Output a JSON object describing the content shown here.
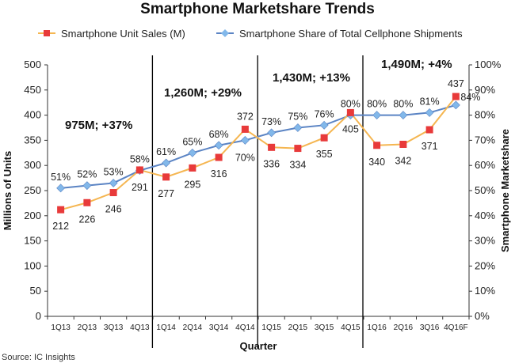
{
  "chart_data": {
    "type": "line",
    "title": "Smartphone Marketshare Trends",
    "xlabel": "Quarter",
    "ylabel": "Millions of Units",
    "y2label": "Smartphone Marketshare",
    "source": "Source: IC Insights",
    "categories": [
      "1Q13",
      "2Q13",
      "3Q13",
      "4Q13",
      "1Q14",
      "2Q14",
      "3Q14",
      "4Q14",
      "1Q15",
      "2Q15",
      "3Q15",
      "4Q15",
      "1Q16",
      "2Q16",
      "3Q16",
      "4Q16F"
    ],
    "ylim": [
      0,
      500
    ],
    "yticks": [
      "0",
      "50",
      "100",
      "150",
      "200",
      "250",
      "300",
      "350",
      "400",
      "450",
      "500"
    ],
    "y2lim": [
      0,
      100
    ],
    "y2ticks": [
      "0%",
      "10%",
      "20%",
      "30%",
      "40%",
      "50%",
      "60%",
      "70%",
      "80%",
      "90%",
      "100%"
    ],
    "grid": false,
    "legend_position": "top",
    "series": [
      {
        "name": "Smartphone Unit Sales (M)",
        "axis": "left",
        "color": "#f5b651",
        "marker_color": "#e83a3a",
        "marker": "square",
        "values": [
          212,
          226,
          246,
          291,
          277,
          295,
          316,
          372,
          336,
          334,
          355,
          405,
          340,
          342,
          371,
          437
        ],
        "labels": [
          "212",
          "226",
          "246",
          "291",
          "277",
          "295",
          "316",
          "372",
          "336",
          "334",
          "355",
          "405",
          "340",
          "342",
          "371",
          "437"
        ]
      },
      {
        "name": "Smartphone Share of Total Cellphone Shipments",
        "axis": "right",
        "color": "#5b84c4",
        "marker_color": "#82b8ea",
        "marker": "diamond",
        "values": [
          51,
          52,
          53,
          58,
          61,
          65,
          68,
          70,
          73,
          75,
          76,
          80,
          80,
          80,
          81,
          84
        ],
        "labels": [
          "51%",
          "52%",
          "53%",
          "58%",
          "61%",
          "65%",
          "68%",
          "70%",
          "73%",
          "75%",
          "76%",
          "80%",
          "80%",
          "80%",
          "81%",
          "84%"
        ]
      }
    ],
    "annotations": [
      "975M; +37%",
      "1,260M; +29%",
      "1,430M; +13%",
      "1,490M; +4%"
    ]
  }
}
